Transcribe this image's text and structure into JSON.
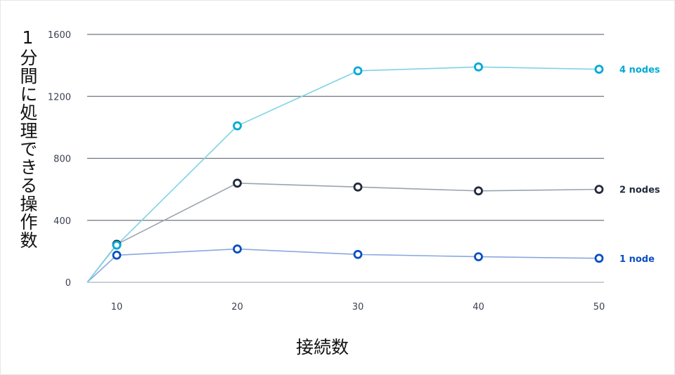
{
  "chart_data": {
    "type": "line",
    "ylabel": "1分間に処理できる操作数",
    "xlabel": "接続数",
    "x": [
      10,
      20,
      30,
      40,
      50
    ],
    "y_ticks": [
      0,
      400,
      800,
      1200,
      1600
    ],
    "x_ticks": [
      10,
      20,
      30,
      40,
      50
    ],
    "ylim": [
      0,
      1600
    ],
    "grid": "horizontal",
    "legend": "end-of-line labels at right",
    "origin_point": [
      0,
      0
    ],
    "series": [
      {
        "name": "4 nodes",
        "color": "#00a9d6",
        "line_color": "#7fd3e6",
        "values": [
          240,
          1010,
          1365,
          1390,
          1375
        ]
      },
      {
        "name": "2 nodes",
        "color": "#222b3d",
        "line_color": "#9aa3b0",
        "values": [
          245,
          640,
          615,
          590,
          600
        ]
      },
      {
        "name": "1 node",
        "color": "#0a4fc1",
        "line_color": "#8aa8e0",
        "values": [
          175,
          215,
          180,
          165,
          155
        ]
      }
    ]
  }
}
